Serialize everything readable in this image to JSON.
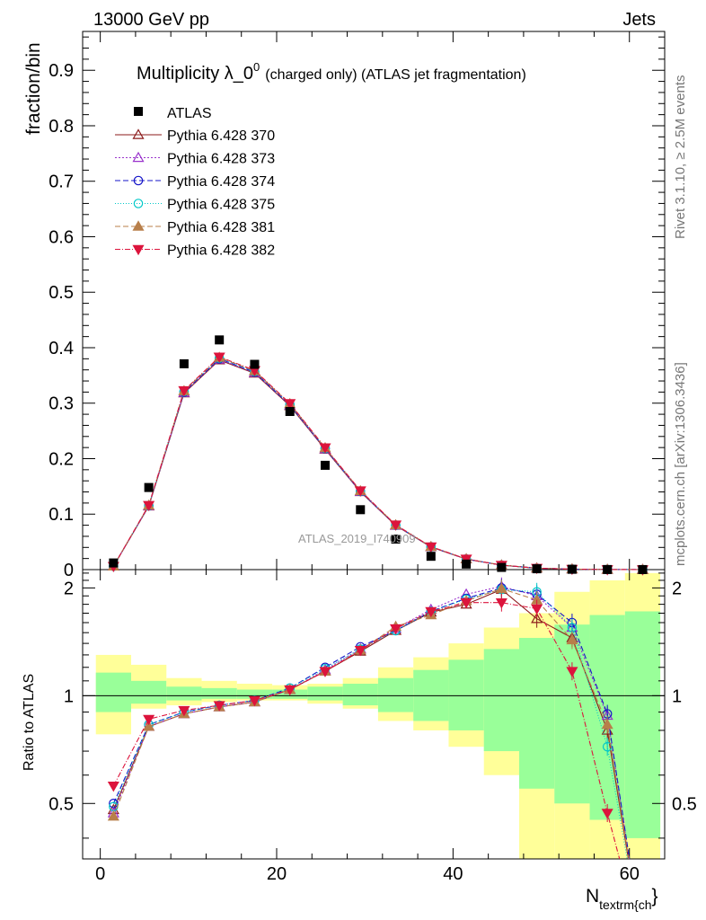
{
  "chart_data": {
    "type": "scatter",
    "header_left": "13000 GeV pp",
    "header_right": "Jets",
    "title": "Multiplicity λ_0",
    "title_sup": "0",
    "title_extra": "(charged only) (ATLAS jet fragmentation)",
    "ylabel": "fraction/bin",
    "ratio_ylabel": "Ratio to ATLAS",
    "xlabel": "N",
    "xlabel_sub": "textrm{ch",
    "xlabel_end": "}",
    "side_label_top": "Rivet 3.1.10, ≥ 2.5M events",
    "side_label_bottom": "mcplots.cern.ch [arXiv:1306.3436]",
    "watermark": "ATLAS_2019_I740909",
    "xlim": [
      -2,
      64
    ],
    "ylim": [
      0,
      0.97
    ],
    "ratio_ylim": [
      0.35,
      2.25
    ],
    "x_ticks": [
      "0",
      "20",
      "40",
      "60"
    ],
    "y_ticks": [
      "0",
      "0.1",
      "0.2",
      "0.3",
      "0.4",
      "0.5",
      "0.6",
      "0.7",
      "0.8",
      "0.9"
    ],
    "ratio_ticks": [
      "0.5",
      "1",
      "2"
    ],
    "data": {
      "name": "ATLAS",
      "x": [
        1.5,
        5.5,
        9.5,
        13.5,
        17.5,
        21.5,
        25.5,
        29.5,
        33.5,
        37.5,
        41.5,
        45.5,
        49.5,
        53.5,
        57.5,
        61.5
      ],
      "y": [
        0.012,
        0.148,
        0.371,
        0.414,
        0.37,
        0.285,
        0.188,
        0.108,
        0.055,
        0.024,
        0.01,
        0.004,
        0.0015,
        0.0006,
        0.0002,
        0.0001
      ]
    },
    "mc": {
      "x": [
        1.5,
        5.5,
        9.5,
        13.5,
        17.5,
        21.5,
        25.5,
        29.5,
        33.5,
        37.5,
        41.5,
        45.5,
        49.5,
        53.5,
        57.5,
        61.5
      ],
      "y": [
        0.006,
        0.115,
        0.32,
        0.38,
        0.356,
        0.297,
        0.218,
        0.141,
        0.08,
        0.041,
        0.019,
        0.008,
        0.0026,
        0.0009,
        0.0002,
        0.0
      ],
      "series": [
        {
          "name": "Pythia 6.428 370",
          "color": "#8b1a1a",
          "marker": "triangle-open",
          "dash": "",
          "ratio": [
            0.48,
            0.82,
            0.89,
            0.93,
            0.96,
            1.04,
            1.17,
            1.33,
            1.52,
            1.71,
            1.8,
            1.98,
            1.64,
            1.45,
            0.8,
            0.2
          ]
        },
        {
          "name": "Pythia 6.428 373",
          "color": "#9932cc",
          "marker": "triangle-open",
          "dash": "2,2",
          "ratio": [
            0.47,
            0.82,
            0.89,
            0.93,
            0.96,
            1.04,
            1.18,
            1.35,
            1.54,
            1.74,
            1.92,
            2.02,
            1.9,
            1.55,
            0.88,
            0.2
          ]
        },
        {
          "name": "Pythia 6.428 374",
          "color": "#1515c8",
          "marker": "circle-open",
          "dash": "6,3",
          "ratio": [
            0.5,
            0.83,
            0.9,
            0.94,
            0.97,
            1.05,
            1.2,
            1.37,
            1.52,
            1.72,
            1.87,
            2.0,
            1.92,
            1.6,
            0.89,
            0.2
          ]
        },
        {
          "name": "Pythia 6.428 375",
          "color": "#00c8c8",
          "marker": "circle-open",
          "dash": "1,2",
          "ratio": [
            0.49,
            0.83,
            0.9,
            0.94,
            0.97,
            1.05,
            1.19,
            1.35,
            1.52,
            1.72,
            1.86,
            1.98,
            1.95,
            1.55,
            0.72,
            0.2
          ]
        },
        {
          "name": "Pythia 6.428 381",
          "color": "#b87f4a",
          "marker": "triangle-filled",
          "dash": "6,3",
          "ratio": [
            0.46,
            0.82,
            0.89,
            0.93,
            0.96,
            1.04,
            1.17,
            1.34,
            1.56,
            1.68,
            1.84,
            1.99,
            1.85,
            1.43,
            0.83,
            0.2
          ]
        },
        {
          "name": "Pythia 6.428 382",
          "color": "#dc143c",
          "marker": "triangle-down-filled",
          "dash": "6,2,1,2",
          "ratio": [
            0.56,
            0.86,
            0.91,
            0.94,
            0.97,
            1.04,
            1.17,
            1.34,
            1.54,
            1.72,
            1.82,
            1.82,
            1.75,
            1.17,
            0.47,
            0.2
          ]
        }
      ]
    },
    "bands": {
      "edges": [
        -0.5,
        3.5,
        7.5,
        11.5,
        15.5,
        19.5,
        23.5,
        27.5,
        31.5,
        35.5,
        39.5,
        43.5,
        47.5,
        51.5,
        55.5,
        59.5,
        63.5
      ],
      "yellow_lo": [
        0.78,
        0.92,
        0.94,
        0.96,
        0.97,
        0.97,
        0.95,
        0.92,
        0.85,
        0.8,
        0.72,
        0.6,
        0.3,
        0.3,
        0.3,
        0.3
      ],
      "yellow_hi": [
        1.3,
        1.22,
        1.12,
        1.1,
        1.08,
        1.07,
        1.08,
        1.12,
        1.2,
        1.28,
        1.4,
        1.55,
        1.7,
        1.95,
        2.1,
        2.2
      ],
      "green_lo": [
        0.9,
        0.95,
        0.97,
        0.98,
        0.98,
        0.98,
        0.97,
        0.94,
        0.9,
        0.85,
        0.8,
        0.7,
        0.55,
        0.5,
        0.45,
        0.4
      ],
      "green_hi": [
        1.16,
        1.1,
        1.06,
        1.05,
        1.04,
        1.04,
        1.06,
        1.08,
        1.12,
        1.18,
        1.26,
        1.35,
        1.45,
        1.58,
        1.68,
        1.72
      ]
    }
  }
}
